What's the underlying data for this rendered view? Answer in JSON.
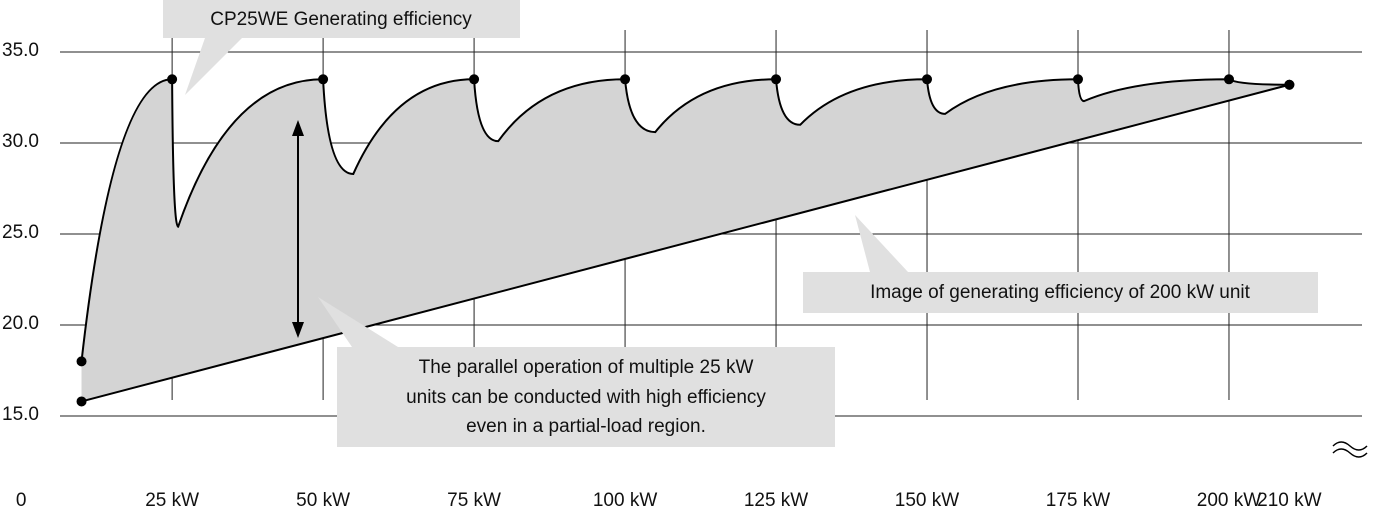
{
  "chart_data": {
    "type": "line",
    "series": [
      {
        "color": "#000000",
        "x": [
          10,
          25,
          26,
          50,
          55,
          75,
          79,
          100,
          105,
          125,
          129,
          150,
          153,
          175,
          176,
          200,
          210
        ],
        "values": [
          18,
          33.5,
          25.4,
          33.5,
          28.3,
          33.5,
          30.1,
          33.5,
          30.6,
          33.5,
          31.0,
          33.5,
          31.6,
          33.5,
          32.3,
          33.5,
          33.2
        ]
      },
      {
        "color": "#000000",
        "x": [
          10,
          210
        ],
        "values": [
          15.8,
          33.2
        ]
      }
    ],
    "fill_color": "#d4d4d4",
    "xlim": [
      -3.5,
      226
    ],
    "xticks": [
      0,
      {
        "value": 25,
        "label": "25 kW"
      },
      {
        "value": 50,
        "label": "50 kW"
      },
      {
        "value": 75,
        "label": "75 kW"
      },
      {
        "value": 100,
        "label": "100 kW"
      },
      {
        "value": 125,
        "label": "125 kW"
      },
      {
        "value": 150,
        "label": "150 kW"
      },
      {
        "value": 175,
        "label": "175 kW"
      },
      {
        "value": 200,
        "label": "200 kW"
      },
      {
        "value": 210,
        "label": "210 kW"
      }
    ],
    "ylim": [
      12.5,
      37.5
    ],
    "yticks": [
      {
        "value": 15,
        "label": "15.0"
      },
      {
        "value": 20,
        "label": "20.0"
      },
      {
        "value": 25,
        "label": "25.0"
      },
      {
        "value": 30,
        "label": "30.0"
      },
      {
        "value": 35,
        "label": "35.0"
      }
    ],
    "grid": true,
    "annotations": {
      "upper": "CP25WE Generating efficiency",
      "lower": "Image of generating efficiency of 200 kW unit",
      "note": [
        "The parallel operation of multiple 25 kW",
        "units can be conducted with high efficiency",
        "even in a partial-load region."
      ]
    }
  }
}
